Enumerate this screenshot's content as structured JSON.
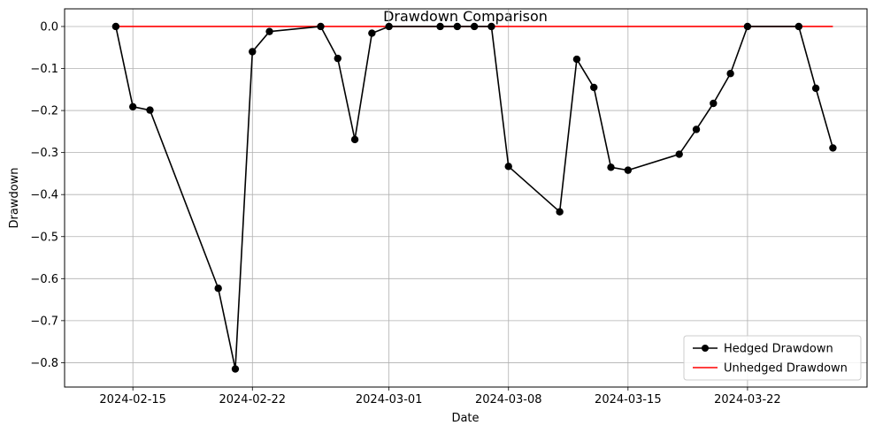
{
  "chart_data": {
    "type": "line",
    "title": "Drawdown Comparison",
    "xlabel": "Date",
    "ylabel": "Drawdown",
    "x_ticks": [
      "2024-02-15",
      "2024-02-22",
      "2024-03-01",
      "2024-03-08",
      "2024-03-15",
      "2024-03-22"
    ],
    "y_ticks": [
      "0.0",
      "−0.1",
      "−0.2",
      "−0.3",
      "−0.4",
      "−0.5",
      "−0.6",
      "−0.7",
      "−0.8"
    ],
    "xlim": [
      "2024-02-11",
      "2024-03-29"
    ],
    "ylim": [
      -0.858,
      0.042
    ],
    "grid": true,
    "legend_position": "lower-right",
    "series": [
      {
        "name": "Hedged Drawdown",
        "color": "#000000",
        "marker": "circle",
        "points": [
          {
            "x": "2024-02-14",
            "y": 0.0
          },
          {
            "x": "2024-02-15",
            "y": -0.191
          },
          {
            "x": "2024-02-16",
            "y": -0.199
          },
          {
            "x": "2024-02-20",
            "y": -0.623
          },
          {
            "x": "2024-02-21",
            "y": -0.815
          },
          {
            "x": "2024-02-22",
            "y": -0.06
          },
          {
            "x": "2024-02-23",
            "y": -0.012
          },
          {
            "x": "2024-02-26",
            "y": 0.0
          },
          {
            "x": "2024-02-27",
            "y": -0.076
          },
          {
            "x": "2024-02-28",
            "y": -0.269
          },
          {
            "x": "2024-02-29",
            "y": -0.016
          },
          {
            "x": "2024-03-01",
            "y": 0.0
          },
          {
            "x": "2024-03-04",
            "y": 0.0
          },
          {
            "x": "2024-03-05",
            "y": 0.0
          },
          {
            "x": "2024-03-06",
            "y": 0.0
          },
          {
            "x": "2024-03-07",
            "y": 0.0
          },
          {
            "x": "2024-03-08",
            "y": -0.333
          },
          {
            "x": "2024-03-11",
            "y": -0.441
          },
          {
            "x": "2024-03-12",
            "y": -0.078
          },
          {
            "x": "2024-03-13",
            "y": -0.145
          },
          {
            "x": "2024-03-14",
            "y": -0.335
          },
          {
            "x": "2024-03-15",
            "y": -0.342
          },
          {
            "x": "2024-03-18",
            "y": -0.304
          },
          {
            "x": "2024-03-19",
            "y": -0.245
          },
          {
            "x": "2024-03-20",
            "y": -0.183
          },
          {
            "x": "2024-03-21",
            "y": -0.112
          },
          {
            "x": "2024-03-22",
            "y": 0.0
          },
          {
            "x": "2024-03-25",
            "y": 0.0
          },
          {
            "x": "2024-03-26",
            "y": -0.147
          },
          {
            "x": "2024-03-27",
            "y": -0.289
          }
        ]
      },
      {
        "name": "Unhedged Drawdown",
        "color": "#ff0000",
        "marker": "none",
        "points": [
          {
            "x": "2024-02-14",
            "y": 0.0
          },
          {
            "x": "2024-03-27",
            "y": 0.0
          }
        ]
      }
    ]
  }
}
